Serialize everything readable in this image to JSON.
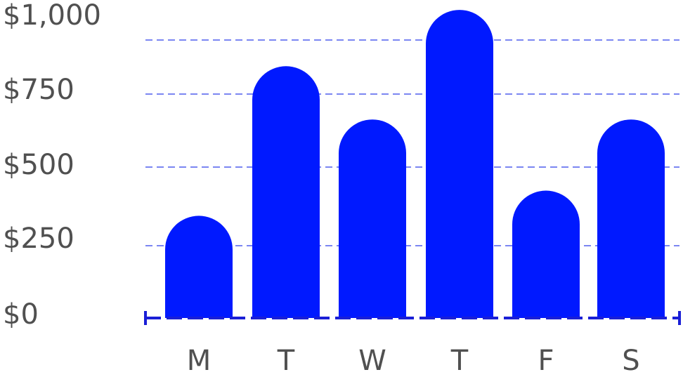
{
  "chart_data": {
    "type": "bar",
    "title": "",
    "xlabel": "",
    "ylabel": "",
    "categories": [
      "M",
      "T",
      "W",
      "T",
      "F",
      "S"
    ],
    "values": [
      345,
      850,
      670,
      1040,
      430,
      670
    ],
    "ylim": [
      0,
      1000
    ],
    "y_ticks": [
      {
        "value": 0,
        "label": "$0"
      },
      {
        "value": 250,
        "label": "$250"
      },
      {
        "value": 500,
        "label": "$500"
      },
      {
        "value": 750,
        "label": "$750"
      },
      {
        "value": 1000,
        "label": "$1,000"
      }
    ],
    "grid": true,
    "bar_style": "rounded-top",
    "colors": {
      "bar": "#0019ff",
      "grid": "#7b86f2",
      "axis": "#1a1fd6",
      "label": "#505050"
    }
  }
}
